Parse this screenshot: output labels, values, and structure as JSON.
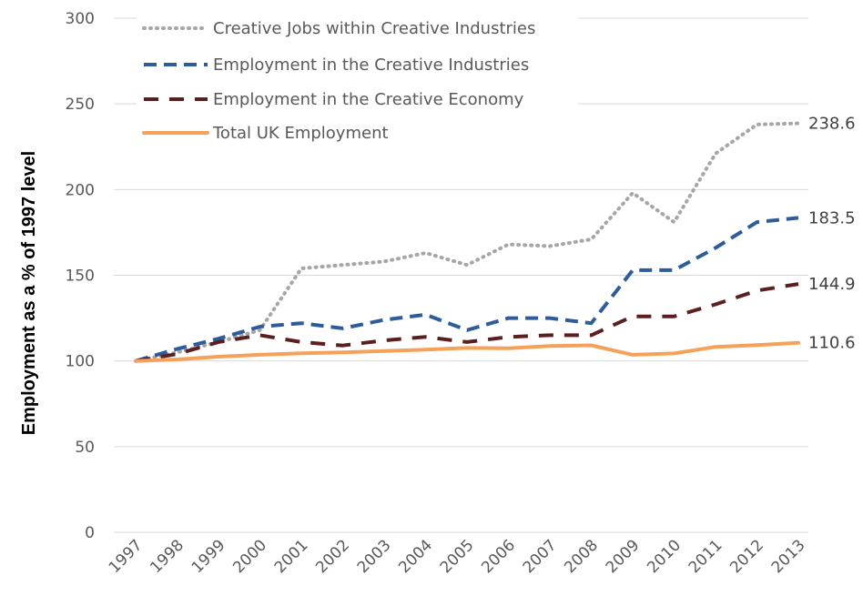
{
  "chart_data": {
    "type": "line",
    "title": "",
    "xlabel": "",
    "ylabel": "Employment as a % of 1997 level",
    "ylim": [
      0,
      300
    ],
    "yticks": [
      0,
      50,
      100,
      150,
      200,
      250,
      300
    ],
    "grid": true,
    "legend_position": "top-left",
    "categories": [
      "1997",
      "1998",
      "1999",
      "2000",
      "2001",
      "2002",
      "2003",
      "2004",
      "2005",
      "2006",
      "2007",
      "2008",
      "2009",
      "2010",
      "2011",
      "2012",
      "2013"
    ],
    "series": [
      {
        "name": "Creative Jobs within Creative Industries",
        "color": "#a6a6a6",
        "dash": "dotted",
        "values": [
          100,
          105,
          111,
          118,
          154,
          156,
          158,
          163,
          156,
          168,
          167,
          171,
          198,
          181,
          221,
          238,
          238.6
        ],
        "end_label": ""
      },
      {
        "name": "Employment in the Creative Industries",
        "color": "#2e5c99",
        "dash": "dashed",
        "values": [
          100,
          107,
          113,
          120,
          122,
          119,
          124,
          127,
          118,
          125,
          125,
          122,
          153,
          153,
          166,
          181,
          183.5
        ],
        "end_label": "183.5"
      },
      {
        "name": "Employment in the Creative Economy",
        "color": "#5c1f1f",
        "dash": "long-dashed",
        "values": [
          100,
          104,
          111,
          115,
          111,
          109,
          112,
          114,
          111,
          114,
          115,
          115,
          126,
          126,
          133,
          141,
          144.9
        ],
        "end_label": "144.9"
      },
      {
        "name": "Total UK Employment",
        "color": "#f4a259",
        "dash": "solid",
        "values": [
          100,
          100.9,
          102.5,
          103.6,
          104.5,
          105,
          105.8,
          106.6,
          107.6,
          107.4,
          108.7,
          109.1,
          103.6,
          104.4,
          108.2,
          109.2,
          110.6
        ],
        "end_label": "110.6"
      }
    ],
    "annotations": [
      "238.6",
      "183.5",
      "144.9",
      "110.6"
    ]
  }
}
